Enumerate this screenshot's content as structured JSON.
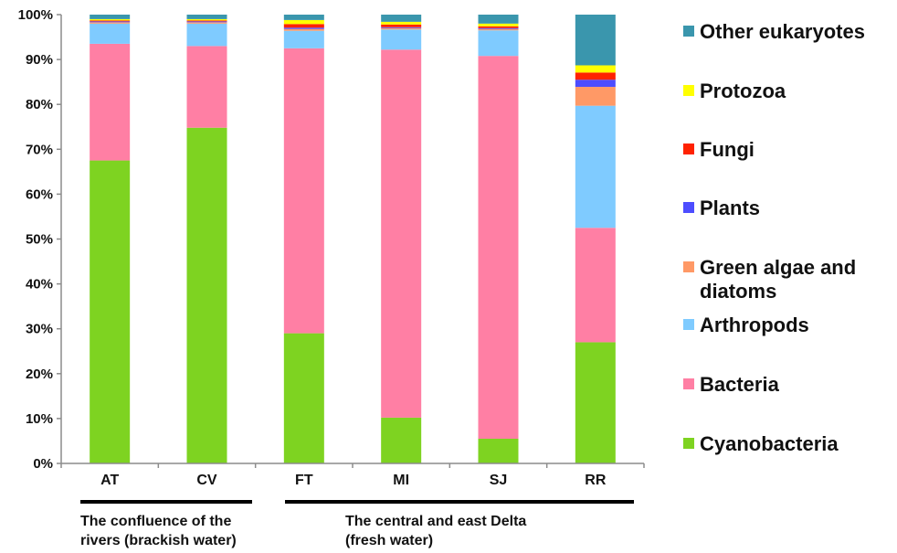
{
  "chart_data": {
    "type": "bar",
    "stacked": true,
    "percent": true,
    "title": "",
    "xlabel": "",
    "ylabel": "",
    "ylim": [
      0,
      100
    ],
    "y_ticks": [
      "0%",
      "10%",
      "20%",
      "30%",
      "40%",
      "50%",
      "60%",
      "70%",
      "80%",
      "90%",
      "100%"
    ],
    "grid": false,
    "legend_position": "right",
    "categories": [
      "AT",
      "CV",
      "FT",
      "MI",
      "SJ",
      "RR"
    ],
    "series": [
      {
        "name": "Cyanobacteria",
        "color": "#7ed321",
        "values": [
          67.5,
          74.8,
          29.0,
          10.2,
          5.5,
          27.0
        ]
      },
      {
        "name": "Bacteria",
        "color": "#ff7fa4",
        "values": [
          26.0,
          18.2,
          63.5,
          82.0,
          85.3,
          25.5
        ]
      },
      {
        "name": "Arthropods",
        "color": "#7fcbff",
        "values": [
          4.5,
          5.0,
          3.9,
          4.5,
          5.7,
          27.2
        ]
      },
      {
        "name": "Green algae and diatoms",
        "color": "#ff9966",
        "values": [
          0.3,
          0.3,
          0.4,
          0.3,
          0.3,
          4.2
        ]
      },
      {
        "name": "Plants",
        "color": "#4d4dff",
        "values": [
          0.2,
          0.2,
          0.3,
          0.2,
          0.2,
          1.6
        ]
      },
      {
        "name": "Fungi",
        "color": "#ff2200",
        "values": [
          0.2,
          0.2,
          0.8,
          0.6,
          0.4,
          1.6
        ]
      },
      {
        "name": "Protozoa",
        "color": "#ffff00",
        "values": [
          0.3,
          0.3,
          0.9,
          0.6,
          0.6,
          1.6
        ]
      },
      {
        "name": "Other eukaryotes",
        "color": "#3a96ad",
        "values": [
          1.0,
          1.0,
          1.2,
          1.6,
          2.0,
          11.3
        ]
      }
    ],
    "groups": [
      {
        "label_lines": [
          "The confluence of the",
          "rivers (brackish water)"
        ],
        "categories": [
          "AT",
          "CV"
        ]
      },
      {
        "label_lines": [
          "The central and east Delta",
          "(fresh water)"
        ],
        "categories": [
          "FT",
          "MI",
          "SJ",
          "RR"
        ]
      }
    ]
  }
}
